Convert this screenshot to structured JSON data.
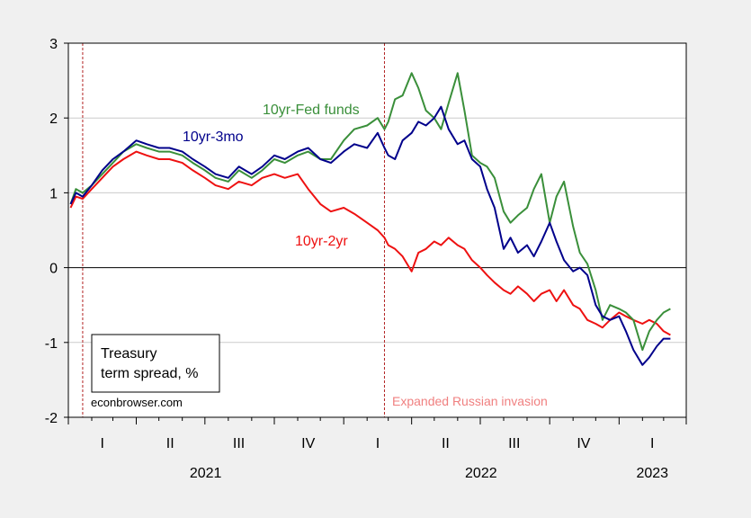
{
  "chart_data": {
    "type": "line",
    "title": "",
    "xlabel": "",
    "ylabel": "",
    "ylim": [
      -2,
      3
    ],
    "yticks": [
      -2,
      -1,
      0,
      1,
      2,
      3
    ],
    "xlim": [
      "2021-01-01",
      "2023-03-31"
    ],
    "grid": true,
    "quarter_labels": [
      {
        "label": "I",
        "date": "2021-02-15"
      },
      {
        "label": "II",
        "date": "2021-05-16"
      },
      {
        "label": "III",
        "date": "2021-08-15"
      },
      {
        "label": "IV",
        "date": "2021-11-15"
      },
      {
        "label": "I",
        "date": "2022-02-15"
      },
      {
        "label": "II",
        "date": "2022-05-16"
      },
      {
        "label": "III",
        "date": "2022-08-15"
      },
      {
        "label": "IV",
        "date": "2022-11-15"
      },
      {
        "label": "I",
        "date": "2023-02-14"
      }
    ],
    "year_labels": [
      {
        "label": "2021",
        "date": "2021-07-02"
      },
      {
        "label": "2022",
        "date": "2022-07-02"
      },
      {
        "label": "2023",
        "date": "2023-02-14"
      }
    ],
    "legend_box": {
      "line1": "Treasury",
      "line2": "term spread, %"
    },
    "source": "econbrowser.com",
    "vlines": [
      {
        "date": "2021-01-20",
        "color": "#b22222"
      },
      {
        "date": "2022-02-24",
        "color": "#b22222"
      }
    ],
    "annotations": [
      {
        "text": "Expanded Russian invasion",
        "color": "#f08080"
      }
    ],
    "series": [
      {
        "name": "10yr-3mo",
        "color": "#00008b",
        "x": [
          "2021-01-04",
          "2021-01-11",
          "2021-01-20",
          "2021-02-01",
          "2021-02-15",
          "2021-03-01",
          "2021-03-15",
          "2021-04-01",
          "2021-04-15",
          "2021-05-01",
          "2021-05-15",
          "2021-06-01",
          "2021-06-15",
          "2021-07-01",
          "2021-07-15",
          "2021-08-01",
          "2021-08-15",
          "2021-09-01",
          "2021-09-15",
          "2021-10-01",
          "2021-10-15",
          "2021-11-01",
          "2021-11-15",
          "2021-12-01",
          "2021-12-15",
          "2022-01-01",
          "2022-01-15",
          "2022-02-01",
          "2022-02-15",
          "2022-02-24",
          "2022-03-01",
          "2022-03-10",
          "2022-03-20",
          "2022-04-01",
          "2022-04-10",
          "2022-04-20",
          "2022-05-01",
          "2022-05-10",
          "2022-05-20",
          "2022-06-01",
          "2022-06-10",
          "2022-06-20",
          "2022-07-01",
          "2022-07-10",
          "2022-07-20",
          "2022-08-01",
          "2022-08-10",
          "2022-08-20",
          "2022-09-01",
          "2022-09-10",
          "2022-09-20",
          "2022-10-01",
          "2022-10-10",
          "2022-10-20",
          "2022-11-01",
          "2022-11-10",
          "2022-11-20",
          "2022-12-01",
          "2022-12-10",
          "2022-12-20",
          "2023-01-01",
          "2023-01-10",
          "2023-01-20",
          "2023-02-01",
          "2023-02-10",
          "2023-02-20",
          "2023-03-01",
          "2023-03-10"
        ],
        "values": [
          0.85,
          1.0,
          0.95,
          1.1,
          1.3,
          1.45,
          1.55,
          1.7,
          1.65,
          1.6,
          1.6,
          1.55,
          1.45,
          1.35,
          1.25,
          1.2,
          1.35,
          1.25,
          1.35,
          1.5,
          1.45,
          1.55,
          1.6,
          1.45,
          1.4,
          1.55,
          1.65,
          1.6,
          1.8,
          1.6,
          1.5,
          1.45,
          1.7,
          1.8,
          1.95,
          1.9,
          2.0,
          2.15,
          1.85,
          1.65,
          1.7,
          1.45,
          1.35,
          1.05,
          0.8,
          0.25,
          0.4,
          0.2,
          0.3,
          0.15,
          0.35,
          0.6,
          0.35,
          0.1,
          -0.05,
          0.0,
          -0.1,
          -0.5,
          -0.65,
          -0.7,
          -0.65,
          -0.85,
          -1.1,
          -1.3,
          -1.2,
          -1.05,
          -0.95,
          -0.95
        ]
      },
      {
        "name": "10yr-Fed funds",
        "color": "#3a8f3a",
        "x": [
          "2021-01-04",
          "2021-01-11",
          "2021-01-20",
          "2021-02-01",
          "2021-02-15",
          "2021-03-01",
          "2021-03-15",
          "2021-04-01",
          "2021-04-15",
          "2021-05-01",
          "2021-05-15",
          "2021-06-01",
          "2021-06-15",
          "2021-07-01",
          "2021-07-15",
          "2021-08-01",
          "2021-08-15",
          "2021-09-01",
          "2021-09-15",
          "2021-10-01",
          "2021-10-15",
          "2021-11-01",
          "2021-11-15",
          "2021-12-01",
          "2021-12-15",
          "2022-01-01",
          "2022-01-15",
          "2022-02-01",
          "2022-02-15",
          "2022-02-24",
          "2022-03-01",
          "2022-03-10",
          "2022-03-20",
          "2022-04-01",
          "2022-04-10",
          "2022-04-20",
          "2022-05-01",
          "2022-05-10",
          "2022-05-20",
          "2022-06-01",
          "2022-06-10",
          "2022-06-20",
          "2022-07-01",
          "2022-07-10",
          "2022-07-20",
          "2022-08-01",
          "2022-08-10",
          "2022-08-20",
          "2022-09-01",
          "2022-09-10",
          "2022-09-20",
          "2022-10-01",
          "2022-10-10",
          "2022-10-20",
          "2022-11-01",
          "2022-11-10",
          "2022-11-20",
          "2022-12-01",
          "2022-12-10",
          "2022-12-20",
          "2023-01-01",
          "2023-01-10",
          "2023-01-20",
          "2023-02-01",
          "2023-02-10",
          "2023-02-20",
          "2023-03-01",
          "2023-03-10"
        ],
        "values": [
          0.85,
          1.05,
          1.0,
          1.1,
          1.25,
          1.4,
          1.55,
          1.65,
          1.6,
          1.55,
          1.55,
          1.5,
          1.4,
          1.3,
          1.2,
          1.15,
          1.3,
          1.2,
          1.3,
          1.45,
          1.4,
          1.5,
          1.55,
          1.45,
          1.45,
          1.7,
          1.85,
          1.9,
          2.0,
          1.85,
          1.95,
          2.25,
          2.3,
          2.6,
          2.4,
          2.1,
          2.0,
          1.85,
          2.2,
          2.6,
          2.1,
          1.5,
          1.4,
          1.35,
          1.2,
          0.75,
          0.6,
          0.7,
          0.8,
          1.05,
          1.25,
          0.6,
          0.95,
          1.15,
          0.55,
          0.2,
          0.05,
          -0.3,
          -0.7,
          -0.5,
          -0.55,
          -0.6,
          -0.7,
          -1.1,
          -0.85,
          -0.7,
          -0.6,
          -0.55
        ]
      },
      {
        "name": "10yr-2yr",
        "color": "#ee1111",
        "x": [
          "2021-01-04",
          "2021-01-11",
          "2021-01-20",
          "2021-02-01",
          "2021-02-15",
          "2021-03-01",
          "2021-03-15",
          "2021-04-01",
          "2021-04-15",
          "2021-05-01",
          "2021-05-15",
          "2021-06-01",
          "2021-06-15",
          "2021-07-01",
          "2021-07-15",
          "2021-08-01",
          "2021-08-15",
          "2021-09-01",
          "2021-09-15",
          "2021-10-01",
          "2021-10-15",
          "2021-11-01",
          "2021-11-15",
          "2021-12-01",
          "2021-12-15",
          "2022-01-01",
          "2022-01-15",
          "2022-02-01",
          "2022-02-15",
          "2022-02-24",
          "2022-03-01",
          "2022-03-10",
          "2022-03-20",
          "2022-04-01",
          "2022-04-10",
          "2022-04-20",
          "2022-05-01",
          "2022-05-10",
          "2022-05-20",
          "2022-06-01",
          "2022-06-10",
          "2022-06-20",
          "2022-07-01",
          "2022-07-10",
          "2022-07-20",
          "2022-08-01",
          "2022-08-10",
          "2022-08-20",
          "2022-09-01",
          "2022-09-10",
          "2022-09-20",
          "2022-10-01",
          "2022-10-10",
          "2022-10-20",
          "2022-11-01",
          "2022-11-10",
          "2022-11-20",
          "2022-12-01",
          "2022-12-10",
          "2022-12-20",
          "2023-01-01",
          "2023-01-10",
          "2023-01-20",
          "2023-02-01",
          "2023-02-10",
          "2023-02-20",
          "2023-03-01",
          "2023-03-10"
        ],
        "values": [
          0.8,
          0.95,
          0.92,
          1.05,
          1.2,
          1.35,
          1.45,
          1.55,
          1.5,
          1.45,
          1.45,
          1.4,
          1.3,
          1.2,
          1.1,
          1.05,
          1.15,
          1.1,
          1.2,
          1.25,
          1.2,
          1.25,
          1.05,
          0.85,
          0.75,
          0.8,
          0.72,
          0.6,
          0.5,
          0.4,
          0.3,
          0.25,
          0.15,
          -0.05,
          0.2,
          0.25,
          0.35,
          0.3,
          0.4,
          0.3,
          0.25,
          0.1,
          0.0,
          -0.1,
          -0.2,
          -0.3,
          -0.35,
          -0.25,
          -0.35,
          -0.45,
          -0.35,
          -0.3,
          -0.45,
          -0.3,
          -0.5,
          -0.55,
          -0.7,
          -0.75,
          -0.8,
          -0.7,
          -0.6,
          -0.65,
          -0.7,
          -0.75,
          -0.7,
          -0.75,
          -0.85,
          -0.9
        ]
      }
    ]
  }
}
